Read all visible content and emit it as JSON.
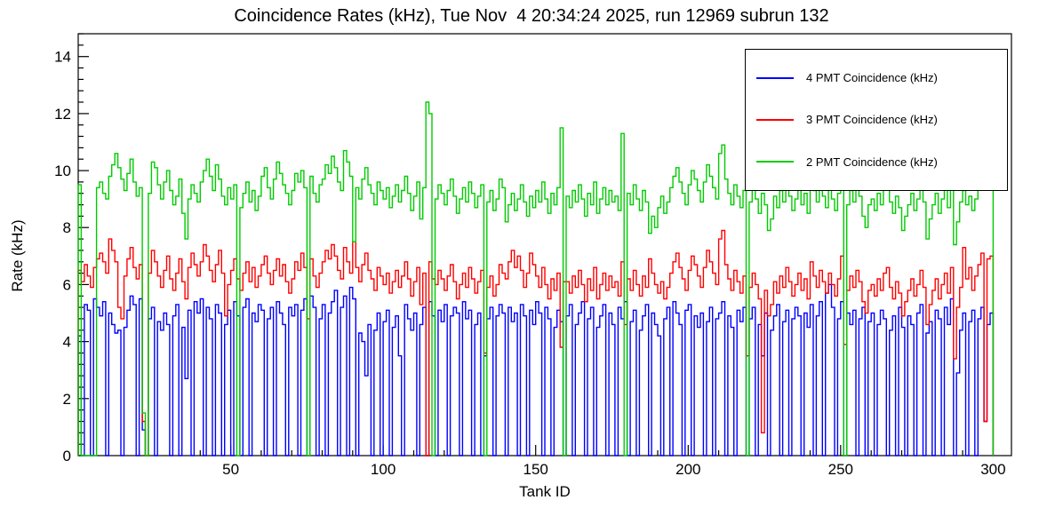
{
  "chart_data": {
    "type": "line",
    "subtype": "step-histogram",
    "title": "Coincidence Rates (kHz), Tue Nov  4 20:34:24 2025, run 12969 subrun 132",
    "xlabel": "Tank ID",
    "ylabel": "Rate (kHz)",
    "xlim": [
      0,
      306
    ],
    "ylim": [
      0,
      14.8
    ],
    "x_major_ticks": [
      50,
      100,
      150,
      200,
      250,
      300
    ],
    "x_minor_step": 10,
    "y_major_ticks": [
      0,
      2,
      4,
      6,
      8,
      10,
      12,
      14
    ],
    "y_minor_step": 0.4,
    "bin_width": 1,
    "x_start": 0,
    "grid": false,
    "legend_position": "top-right",
    "axis_color": "#000000",
    "background_color": "#ffffff",
    "series": [
      {
        "name": "4 PMT Coincidence (kHz)",
        "color": "#0000ff",
        "values": [
          4.2,
          0,
          5.3,
          5.1,
          0,
          5.5,
          5.2,
          4.9,
          5.4,
          0,
          5.0,
          4.6,
          4.3,
          4.4,
          0,
          4.5,
          5.1,
          5.6,
          5.3,
          0,
          5.5,
          0.9,
          0,
          4.8,
          5.2,
          0,
          4.7,
          4.4,
          5.0,
          4.6,
          0,
          4.9,
          5.3,
          0,
          4.5,
          2.7,
          5.1,
          0,
          5.4,
          5.0,
          5.5,
          0,
          5.2,
          4.8,
          0,
          5.3,
          5.0,
          0,
          4.6,
          5.1,
          0,
          5.4,
          4.9,
          0,
          5.2,
          5.5,
          0,
          5.0,
          4.7,
          5.3,
          5.1,
          0,
          4.8,
          5.2,
          0,
          5.4,
          5.0,
          4.6,
          0,
          5.2,
          4.9,
          5.3,
          0,
          5.1,
          5.5,
          0,
          5.6,
          5.2,
          0,
          4.8,
          5.3,
          0,
          5.0,
          5.4,
          5.8,
          0,
          5.2,
          5.6,
          0,
          5.9,
          5.5,
          0,
          4.3,
          4.0,
          2.8,
          4.6,
          0,
          4.4,
          5.0,
          0,
          4.7,
          5.1,
          0,
          4.5,
          4.9,
          3.5,
          0,
          5.3,
          4.8,
          4.4,
          5.0,
          0,
          4.6,
          5.2,
          0,
          5.4,
          4.9,
          0,
          5.1,
          4.7,
          5.3,
          0,
          4.9,
          5.2,
          5.0,
          0,
          5.4,
          4.8,
          5.1,
          0,
          4.6,
          5.0,
          0,
          3.5,
          4.8,
          5.2,
          0,
          4.9,
          5.3,
          5.0,
          0,
          5.2,
          4.7,
          5.0,
          0,
          5.3,
          4.9,
          0,
          5.1,
          4.6,
          5.4,
          5.0,
          0,
          5.2,
          4.8,
          0,
          4.5,
          5.1,
          4.7,
          0,
          4.9,
          5.3,
          0,
          4.6,
          5.0,
          5.4,
          0,
          4.8,
          5.2,
          0,
          4.5,
          4.9,
          5.3,
          0,
          5.0,
          4.6,
          0,
          5.2,
          4.8,
          5.4,
          0,
          4.7,
          5.1,
          0,
          4.4,
          4.9,
          5.3,
          0,
          5.0,
          4.6,
          4.2,
          0,
          4.8,
          5.2,
          0,
          5.4,
          5.0,
          4.6,
          0,
          5.1,
          5.3,
          0,
          4.9,
          4.5,
          5.0,
          0,
          4.7,
          5.2,
          0,
          4.8,
          5.0,
          5.4,
          0,
          4.9,
          4.5,
          0,
          5.1,
          4.7,
          5.2,
          0,
          4.8,
          5.2,
          0,
          4.6,
          3.5,
          5.0,
          0,
          4.4,
          4.9,
          5.3,
          0,
          4.7,
          5.1,
          0,
          4.8,
          5.2,
          4.9,
          0,
          5.0,
          4.5,
          5.3,
          0,
          4.9,
          5.4,
          0,
          5.7,
          6.0,
          5.2,
          0,
          4.8,
          5.4,
          0,
          5.0,
          4.6,
          5.1,
          0,
          4.8,
          5.2,
          0,
          4.7,
          5.0,
          0,
          4.6,
          5.1,
          4.8,
          0,
          4.4,
          4.9,
          0,
          5.2,
          4.5,
          0,
          4.9,
          4.6,
          0,
          5.0,
          5.3,
          0,
          4.3,
          4.7,
          0,
          5.1,
          4.8,
          0,
          5.2,
          4.6,
          5.5,
          0,
          2.9,
          4.4,
          5.0,
          0,
          4.7,
          5.1,
          0,
          4.8,
          5.2,
          1.2,
          4.6,
          5.0
        ]
      },
      {
        "name": "3 PMT Coincidence (kHz)",
        "color": "#ff0000",
        "values": [
          6.5,
          6.1,
          6.7,
          6.3,
          5.9,
          6.6,
          6.9,
          7.1,
          6.8,
          6.4,
          7.6,
          7.2,
          6.8,
          5.2,
          4.8,
          6.3,
          6.9,
          7.3,
          6.6,
          6.2,
          6.7,
          1.2,
          0,
          6.4,
          7.2,
          6.8,
          6.3,
          5.9,
          6.5,
          7.0,
          6.2,
          5.8,
          6.4,
          6.9,
          6.1,
          5.5,
          6.6,
          7.1,
          6.7,
          6.3,
          6.8,
          7.4,
          7.0,
          6.5,
          6.1,
          6.7,
          7.2,
          6.4,
          4.9,
          6.0,
          6.5,
          6.9,
          6.2,
          5.8,
          6.4,
          6.8,
          6.1,
          6.6,
          5.9,
          6.3,
          6.7,
          7.0,
          6.4,
          6.0,
          6.5,
          6.9,
          6.3,
          6.7,
          6.1,
          5.7,
          6.2,
          6.8,
          6.5,
          7.1,
          6.6,
          4.8,
          6.9,
          6.3,
          5.9,
          6.4,
          6.8,
          7.2,
          6.9,
          7.4,
          7.0,
          6.5,
          6.2,
          7.3,
          6.8,
          6.4,
          7.5,
          6.6,
          6.1,
          6.7,
          7.1,
          6.5,
          6.2,
          5.8,
          6.6,
          6.3,
          6.0,
          6.4,
          5.7,
          6.1,
          6.5,
          5.9,
          6.3,
          6.8,
          6.2,
          5.6,
          6.1,
          6.6,
          5.3,
          6.4,
          0,
          6.8,
          6.2,
          6.0,
          6.5,
          6.2,
          5.8,
          6.3,
          6.7,
          6.1,
          5.5,
          6.0,
          6.4,
          5.9,
          6.6,
          6.2,
          5.7,
          6.1,
          6.5,
          3.6,
          5.9,
          6.3,
          5.6,
          6.0,
          6.7,
          6.4,
          6.2,
          6.8,
          7.2,
          6.6,
          7.0,
          6.5,
          5.9,
          6.4,
          7.1,
          6.7,
          6.3,
          5.9,
          6.6,
          6.0,
          5.5,
          6.2,
          5.8,
          6.4,
          3.8,
          6.1,
          6.1,
          5.7,
          6.3,
          5.9,
          6.5,
          6.0,
          5.4,
          6.2,
          5.8,
          6.6,
          5.5,
          6.0,
          6.4,
          5.8,
          6.3,
          5.9,
          6.1,
          5.6,
          6.8,
          4.6,
          6.2,
          5.8,
          6.5,
          6.0,
          5.6,
          6.3,
          5.9,
          6.9,
          6.4,
          6.0,
          5.7,
          6.1,
          5.5,
          5.9,
          6.4,
          6.8,
          7.1,
          6.6,
          6.2,
          5.8,
          6.5,
          7.0,
          6.7,
          6.3,
          5.9,
          6.6,
          7.2,
          6.8,
          6.4,
          6.0,
          7.6,
          7.9,
          6.7,
          6.2,
          5.8,
          6.5,
          6.1,
          5.7,
          6.3,
          3.5,
          5.9,
          6.4,
          6.0,
          5.5,
          0.8,
          5.8,
          4.9,
          5.3,
          6.1,
          5.7,
          6.3,
          5.9,
          6.6,
          6.1,
          5.6,
          6.0,
          6.4,
          5.8,
          6.2,
          5.5,
          6.8,
          6.3,
          5.9,
          6.5,
          6.1,
          5.7,
          6.4,
          6.0,
          5.6,
          6.2,
          7.0,
          3.9,
          5.8,
          6.3,
          5.9,
          6.5,
          6.1,
          5.4,
          5.0,
          5.8,
          6.0,
          5.6,
          6.2,
          5.8,
          6.4,
          6.6,
          5.9,
          5.5,
          6.1,
          5.7,
          4.9,
          5.4,
          5.8,
          6.2,
          5.6,
          6.0,
          6.5,
          5.9,
          4.6,
          5.3,
          5.8,
          6.2,
          5.5,
          6.0,
          6.4,
          5.7,
          6.6,
          3.4,
          5.2,
          5.9,
          7.3,
          6.2,
          6.6,
          5.8,
          6.3,
          6.7,
          7.1,
          1.2,
          6.9,
          7.0
        ]
      },
      {
        "name": "2 PMT Coincidence (kHz)",
        "color": "#00cc00",
        "values": [
          9.5,
          0,
          0,
          0,
          0,
          0,
          9.4,
          9.6,
          9.2,
          9.0,
          9.8,
          10.2,
          10.6,
          10.1,
          9.7,
          9.3,
          9.9,
          10.4,
          9.6,
          9.1,
          9.4,
          1.5,
          0,
          9.2,
          10.3,
          10.1,
          9.5,
          9.0,
          9.6,
          10.0,
          9.3,
          8.8,
          9.1,
          9.7,
          8.5,
          7.6,
          9.0,
          9.5,
          9.2,
          8.9,
          9.6,
          10.0,
          10.4,
          9.8,
          9.3,
          10.2,
          9.7,
          9.1,
          8.8,
          9.4,
          9.0,
          9.5,
          0,
          8.7,
          9.2,
          9.6,
          8.9,
          9.3,
          8.6,
          9.1,
          9.8,
          10.1,
          9.4,
          9.0,
          9.7,
          10.3,
          9.9,
          9.5,
          9.2,
          8.8,
          9.3,
          9.9,
          9.6,
          10.0,
          9.4,
          0,
          9.8,
          9.2,
          8.9,
          9.5,
          9.7,
          10.2,
          9.9,
          10.5,
          10.1,
          9.6,
          9.3,
          10.7,
          10.3,
          9.8,
          7.5,
          9.4,
          9.0,
          9.7,
          10.1,
          9.5,
          9.2,
          8.8,
          9.6,
          9.3,
          9.0,
          9.4,
          8.7,
          9.1,
          9.5,
          8.9,
          9.3,
          9.8,
          9.2,
          8.6,
          9.1,
          9.6,
          8.3,
          9.4,
          12.4,
          12.0,
          0,
          9.0,
          9.5,
          9.2,
          8.8,
          9.3,
          9.7,
          9.1,
          8.5,
          9.0,
          9.4,
          8.9,
          9.6,
          9.2,
          8.7,
          9.1,
          9.5,
          0,
          8.9,
          9.3,
          8.6,
          9.0,
          9.7,
          9.4,
          8.2,
          8.8,
          9.2,
          8.6,
          9.0,
          9.5,
          8.9,
          8.4,
          9.1,
          8.7,
          9.3,
          8.9,
          9.6,
          9.0,
          8.5,
          9.2,
          8.8,
          9.4,
          11.5,
          0,
          9.1,
          8.7,
          9.3,
          8.9,
          9.5,
          9.0,
          8.4,
          9.2,
          8.8,
          9.6,
          8.5,
          9.0,
          9.4,
          8.8,
          9.3,
          8.9,
          9.1,
          8.6,
          11.3,
          0,
          9.2,
          8.8,
          9.5,
          9.0,
          8.6,
          9.3,
          8.9,
          7.8,
          8.4,
          8.0,
          8.7,
          9.1,
          8.5,
          8.9,
          9.4,
          9.8,
          10.1,
          9.6,
          9.2,
          8.8,
          9.5,
          10.0,
          9.7,
          9.3,
          8.9,
          9.6,
          10.2,
          9.8,
          9.4,
          9.0,
          10.6,
          10.9,
          9.7,
          9.2,
          8.8,
          9.5,
          9.1,
          8.7,
          9.3,
          0,
          8.9,
          9.4,
          9.0,
          8.5,
          9.2,
          8.8,
          7.9,
          8.3,
          9.1,
          8.7,
          9.3,
          8.9,
          9.6,
          9.1,
          8.6,
          9.0,
          9.4,
          8.8,
          9.2,
          8.5,
          9.8,
          9.3,
          8.9,
          9.5,
          9.1,
          8.7,
          9.4,
          9.0,
          8.6,
          9.2,
          10.4,
          0,
          8.8,
          9.3,
          8.9,
          9.5,
          9.1,
          8.4,
          8.0,
          8.8,
          9.0,
          8.6,
          9.2,
          8.8,
          9.4,
          9.6,
          8.9,
          8.5,
          9.1,
          8.7,
          7.9,
          8.4,
          8.8,
          9.2,
          8.6,
          9.0,
          9.5,
          8.9,
          7.6,
          8.3,
          8.8,
          9.2,
          8.5,
          9.0,
          9.4,
          8.7,
          9.6,
          7.4,
          8.2,
          8.9,
          9.3,
          8.8,
          9.1,
          8.6,
          9.0,
          9.4,
          9.8,
          10.5,
          12.1,
          12.2
        ]
      }
    ]
  }
}
